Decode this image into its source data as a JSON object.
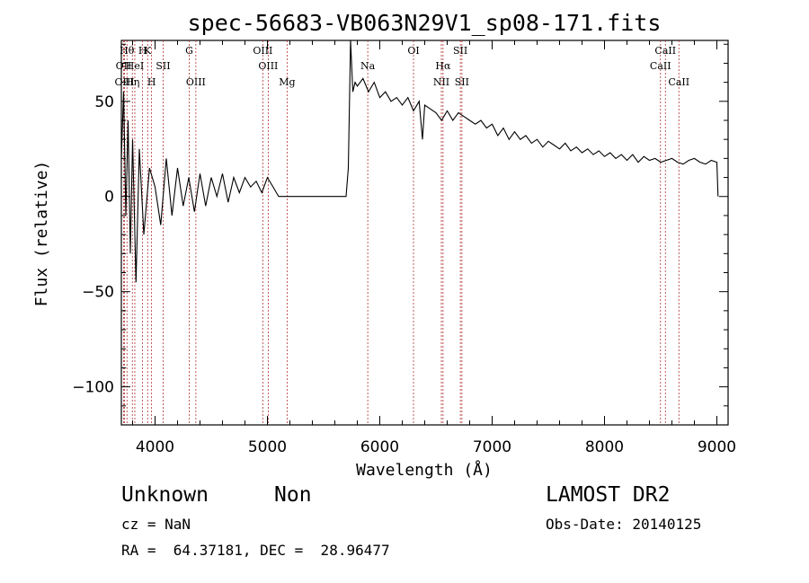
{
  "chart_data": {
    "type": "line",
    "title": "spec-56683-VB063N29V1_sp08-171.fits",
    "xlabel": "Wavelength (Å)",
    "ylabel": "Flux (relative)",
    "xlim": [
      3700,
      9100
    ],
    "ylim": [
      -120,
      82
    ],
    "xticks": [
      4000,
      5000,
      6000,
      7000,
      8000,
      9000
    ],
    "xtick_labels": [
      "4000",
      "5000",
      "6000",
      "7000",
      "8000",
      "9000"
    ],
    "yticks": [
      -100,
      -50,
      0,
      50
    ],
    "ytick_labels": [
      "−100",
      "−50",
      "0",
      "50"
    ],
    "grid": false,
    "series": [
      {
        "x": [
          3700,
          3720,
          3740,
          3760,
          3780,
          3800,
          3830,
          3860,
          3900,
          3950,
          4000,
          4050,
          4100,
          4150,
          4200,
          4250,
          4300,
          4350,
          4400,
          4450,
          4500,
          4550,
          4600,
          4650,
          4700,
          4750,
          4800,
          4850,
          4900,
          4950,
          5000,
          5050,
          5080,
          5100,
          5200,
          5300,
          5400,
          5500,
          5600,
          5700,
          5720,
          5740,
          5760,
          5780,
          5800,
          5850,
          5900,
          5950,
          6000,
          6050,
          6100,
          6150,
          6200,
          6250,
          6300,
          6350,
          6380,
          6400,
          6450,
          6500,
          6550,
          6600,
          6650,
          6700,
          6750,
          6800,
          6850,
          6900,
          6950,
          7000,
          7050,
          7100,
          7150,
          7200,
          7250,
          7300,
          7350,
          7400,
          7450,
          7500,
          7550,
          7600,
          7650,
          7700,
          7750,
          7800,
          7850,
          7900,
          7950,
          8000,
          8050,
          8100,
          8150,
          8200,
          8250,
          8300,
          8350,
          8400,
          8450,
          8500,
          8550,
          8600,
          8650,
          8700,
          8750,
          8800,
          8850,
          8900,
          8950,
          9000,
          9010
        ],
        "y": [
          20,
          55,
          -10,
          40,
          -30,
          30,
          -45,
          25,
          -20,
          15,
          5,
          -15,
          20,
          -10,
          15,
          -5,
          10,
          -8,
          12,
          -5,
          10,
          0,
          12,
          -3,
          10,
          2,
          10,
          5,
          8,
          2,
          10,
          5,
          2,
          0,
          0,
          0,
          0,
          0,
          0,
          0,
          15,
          82,
          55,
          60,
          58,
          62,
          55,
          60,
          52,
          55,
          50,
          52,
          48,
          52,
          45,
          50,
          30,
          48,
          46,
          44,
          40,
          45,
          40,
          44,
          42,
          40,
          38,
          40,
          36,
          38,
          32,
          36,
          30,
          34,
          30,
          32,
          28,
          30,
          26,
          29,
          27,
          25,
          28,
          24,
          26,
          23,
          25,
          22,
          24,
          21,
          23,
          20,
          22,
          19,
          22,
          18,
          21,
          19,
          20,
          18,
          19,
          20,
          18,
          17,
          19,
          20,
          18,
          17,
          19,
          18,
          0
        ]
      }
    ],
    "lines": [
      {
        "x": 3720,
        "label": "OII",
        "row": 1
      },
      {
        "x": 3728,
        "label": "OIII",
        "row": 2
      },
      {
        "x": 3750,
        "label": "Hθ",
        "row": 0
      },
      {
        "x": 3798,
        "label": "Hη",
        "row": 2
      },
      {
        "x": 3820,
        "label": "HeI",
        "row": 1
      },
      {
        "x": 3889,
        "label": "H",
        "row": 0
      },
      {
        "x": 3934,
        "label": "K",
        "row": 0
      },
      {
        "x": 3969,
        "label": "H",
        "row": 2
      },
      {
        "x": 4072,
        "label": "SII",
        "row": 1
      },
      {
        "x": 4304,
        "label": "G",
        "row": 0
      },
      {
        "x": 4363,
        "label": "OIII",
        "row": 2
      },
      {
        "x": 4959,
        "label": "OIII",
        "row": 0
      },
      {
        "x": 5007,
        "label": "OIII",
        "row": 1
      },
      {
        "x": 5175,
        "label": "Mg",
        "row": 2
      },
      {
        "x": 5893,
        "label": "Na",
        "row": 1
      },
      {
        "x": 6300,
        "label": "OI",
        "row": 0
      },
      {
        "x": 6548,
        "label": "NII",
        "row": 2
      },
      {
        "x": 6563,
        "label": "Hα",
        "row": 1
      },
      {
        "x": 6717,
        "label": "SII",
        "row": 0
      },
      {
        "x": 6731,
        "label": "SII",
        "row": 2
      },
      {
        "x": 8498,
        "label": "CaII",
        "row": 1
      },
      {
        "x": 8542,
        "label": "CaII",
        "row": 0
      },
      {
        "x": 8662,
        "label": "CaII",
        "row": 2
      }
    ]
  },
  "info": {
    "classification": "Unknown",
    "subclass": "Non",
    "survey": "LAMOST DR2",
    "cz": "cz = NaN",
    "obs_date": "Obs-Date: 20140125",
    "coords": "RA =  64.37181, DEC =  28.96477"
  }
}
